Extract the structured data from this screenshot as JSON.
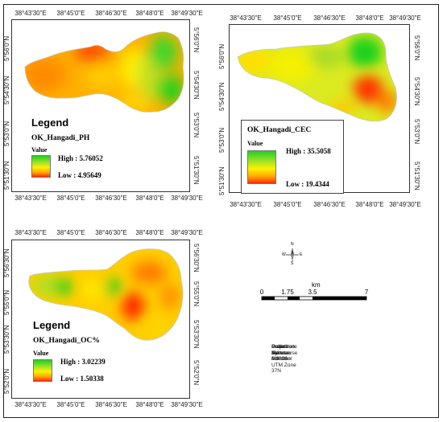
{
  "maps": [
    {
      "id": "ph",
      "layer_name": "OK_Hangadi_PH",
      "legend_title": "Legend",
      "value_label": "Value",
      "high_label": "High : 5.76052",
      "low_label": "Low : 4.95649",
      "x_ticks": [
        "38°43'30\"E",
        "38°45'0\"E",
        "38°46'30\"E",
        "38°48'0\"E",
        "38°49'30\"E"
      ],
      "y_ticks_left": [
        "5°56'0\"N",
        "5°54'30\"N",
        "5°53'0\"N",
        "5°51'30\"N"
      ],
      "y_ticks_right": [
        "5°56'0\"N",
        "5°54'30\"N",
        "5°53'0\"N",
        "5°51'30\"N"
      ]
    },
    {
      "id": "cec",
      "layer_name": "OK_Hangadi_CEC",
      "legend_title": "",
      "value_label": "Value",
      "high_label": "High : 35.5058",
      "low_label": "Low : 19.4344",
      "x_ticks": [
        "38°43'30\"E",
        "38°45'0\"E",
        "38°46'30\"E",
        "38°48'0\"E",
        "38°49'30\"E"
      ],
      "y_ticks_left": [
        "5°56'0\"N",
        "5°54'30\"N",
        "5°53'0\"N",
        "5°51'30\"N"
      ],
      "y_ticks_right": [
        "5°56'0\"N",
        "5°54'30\"N",
        "5°53'0\"N",
        "5°51'30\"N"
      ]
    },
    {
      "id": "oc",
      "layer_name": "OK_Hangadi_OC%",
      "legend_title": "Legend",
      "value_label": "Value",
      "high_label": "High : 3.02239",
      "low_label": "Low : 1.50338",
      "x_ticks": [
        "38°43'30\"E",
        "38°45'0\"E",
        "38°46'30\"E",
        "38°48'0\"E",
        "38°49'30\"E"
      ],
      "y_ticks_left": [
        "5°56'30\"N",
        "5°55'0\"N",
        "5°53'30\"N",
        "5°52'0\"N"
      ],
      "y_ticks_right": [
        "5°56'30\"N",
        "5°55'0\"N",
        "5°53'30\"N",
        "5°52'0\"N"
      ]
    }
  ],
  "north_arrow": {
    "n": "N",
    "s": "S",
    "e": "E",
    "w": "W"
  },
  "scale_bar": {
    "unit": "km",
    "ticks": [
      "0",
      "1.75",
      "3.5",
      "7"
    ]
  },
  "map_info": [
    "Coordinate System: Adindan UTM Zone 37N",
    "Projection: Transverse Mercator",
    "Datum: Adindan",
    "Scale Factor: 0.9996",
    "Units: Meter"
  ],
  "colors": {
    "high": "#1fd11f",
    "mid": "#fff200",
    "low": "#ff2a00"
  }
}
